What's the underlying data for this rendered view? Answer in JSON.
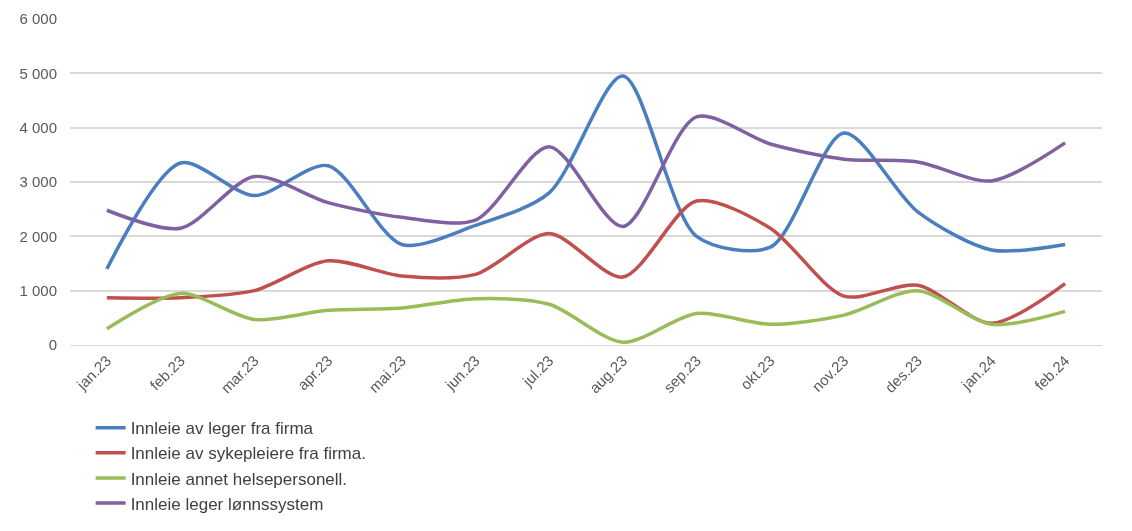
{
  "chart_data": {
    "type": "line",
    "categories": [
      "jan.23",
      "feb.23",
      "mar.23",
      "apr.23",
      "mai.23",
      "jun.23",
      "jul.23",
      "aug.23",
      "sep.23",
      "okt.23",
      "nov.23",
      "des.23",
      "jan.24",
      "feb.24"
    ],
    "series": [
      {
        "name": "Innleie av leger fra firma",
        "color": "#4a7ebf",
        "values": [
          1400,
          3350,
          2750,
          3300,
          1850,
          2200,
          2800,
          4950,
          2000,
          1800,
          3900,
          2450,
          1750,
          1850
        ]
      },
      {
        "name": "Innleie av sykepleiere fra firma.",
        "color": "#c0504d",
        "values": [
          870,
          870,
          1000,
          1550,
          1270,
          1300,
          2050,
          1250,
          2650,
          2150,
          900,
          1100,
          400,
          1130
        ]
      },
      {
        "name": "Innleie annet helsepersonell.",
        "color": "#9bbb59",
        "values": [
          300,
          950,
          470,
          640,
          680,
          850,
          750,
          50,
          580,
          380,
          550,
          1000,
          380,
          620
        ]
      },
      {
        "name": "Innleie leger lønnssystem",
        "color": "#7f60a0",
        "values": [
          2480,
          2150,
          3100,
          2620,
          2350,
          2300,
          3650,
          2180,
          4200,
          3700,
          3420,
          3370,
          3020,
          3720
        ]
      }
    ],
    "ylim": [
      0,
      6000
    ],
    "yticks": [
      {
        "value": 0,
        "label": "0"
      },
      {
        "value": 1000,
        "label": "1 000"
      },
      {
        "value": 2000,
        "label": "2 000"
      },
      {
        "value": 3000,
        "label": "3 000"
      },
      {
        "value": 4000,
        "label": "4 000"
      },
      {
        "value": 5000,
        "label": "5 000"
      },
      {
        "value": 6000,
        "label": "6 000"
      }
    ],
    "grid": "y",
    "legend": "bottom",
    "marker": "none",
    "line_style": "solid"
  }
}
